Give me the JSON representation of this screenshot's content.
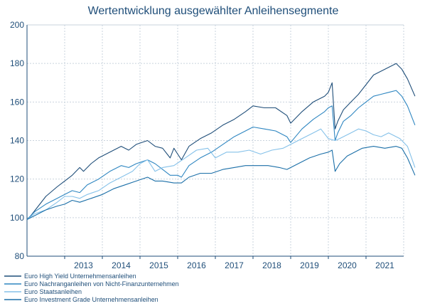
{
  "chart_data": {
    "type": "line",
    "title": "Wertentwicklung  ausgewählter  Anleihensegmente",
    "xlabel": "",
    "ylabel": "",
    "xlim": [
      2012.0,
      2022.0
    ],
    "ylim": [
      80,
      200
    ],
    "y_ticks": [
      80,
      100,
      120,
      140,
      160,
      180,
      200
    ],
    "x_tick_labels": [
      "2013",
      "2014",
      "2015",
      "2016",
      "2017",
      "2018",
      "2019",
      "2020",
      "2021"
    ],
    "grid": true,
    "legend_placement": "bottom-left",
    "series": [
      {
        "name": "Euro High Yield Unternehmensanleihen",
        "color": "#1f4e79",
        "points": [
          [
            2012.0,
            99
          ],
          [
            2012.1,
            101
          ],
          [
            2012.3,
            106
          ],
          [
            2012.5,
            111
          ],
          [
            2012.8,
            116
          ],
          [
            2013.0,
            119
          ],
          [
            2013.2,
            122
          ],
          [
            2013.4,
            126
          ],
          [
            2013.5,
            124
          ],
          [
            2013.7,
            128
          ],
          [
            2013.9,
            131
          ],
          [
            2014.2,
            134
          ],
          [
            2014.5,
            137
          ],
          [
            2014.7,
            135
          ],
          [
            2014.9,
            138
          ],
          [
            2015.2,
            140
          ],
          [
            2015.4,
            137
          ],
          [
            2015.6,
            136
          ],
          [
            2015.8,
            131
          ],
          [
            2015.9,
            136
          ],
          [
            2016.0,
            133
          ],
          [
            2016.1,
            130
          ],
          [
            2016.3,
            137
          ],
          [
            2016.6,
            141
          ],
          [
            2016.9,
            144
          ],
          [
            2017.2,
            148
          ],
          [
            2017.5,
            151
          ],
          [
            2017.8,
            155
          ],
          [
            2018.0,
            158
          ],
          [
            2018.3,
            157
          ],
          [
            2018.6,
            157
          ],
          [
            2018.9,
            153
          ],
          [
            2019.0,
            149
          ],
          [
            2019.3,
            155
          ],
          [
            2019.6,
            160
          ],
          [
            2019.9,
            163
          ],
          [
            2020.0,
            165
          ],
          [
            2020.1,
            170
          ],
          [
            2020.18,
            146
          ],
          [
            2020.25,
            150
          ],
          [
            2020.4,
            156
          ],
          [
            2020.6,
            160
          ],
          [
            2020.8,
            164
          ],
          [
            2021.0,
            169
          ],
          [
            2021.2,
            174
          ],
          [
            2021.4,
            176
          ],
          [
            2021.6,
            178
          ],
          [
            2021.8,
            180
          ],
          [
            2021.95,
            177
          ],
          [
            2022.1,
            172
          ],
          [
            2022.3,
            163
          ]
        ]
      },
      {
        "name": "Euro Nachranganleihen von Nicht-Finanzunternehmen",
        "color": "#2e86c1",
        "points": [
          [
            2012.0,
            99
          ],
          [
            2012.2,
            103
          ],
          [
            2012.5,
            107
          ],
          [
            2012.8,
            110
          ],
          [
            2013.0,
            112
          ],
          [
            2013.2,
            114
          ],
          [
            2013.4,
            113
          ],
          [
            2013.6,
            117
          ],
          [
            2013.9,
            120
          ],
          [
            2014.2,
            124
          ],
          [
            2014.5,
            127
          ],
          [
            2014.7,
            126
          ],
          [
            2014.9,
            128
          ],
          [
            2015.2,
            130
          ],
          [
            2015.4,
            128
          ],
          [
            2015.6,
            125
          ],
          [
            2015.8,
            122
          ],
          [
            2016.0,
            122
          ],
          [
            2016.1,
            121
          ],
          [
            2016.3,
            127
          ],
          [
            2016.6,
            131
          ],
          [
            2016.9,
            134
          ],
          [
            2017.2,
            138
          ],
          [
            2017.5,
            142
          ],
          [
            2017.8,
            145
          ],
          [
            2018.0,
            147
          ],
          [
            2018.3,
            146
          ],
          [
            2018.6,
            145
          ],
          [
            2018.9,
            142
          ],
          [
            2019.0,
            139
          ],
          [
            2019.3,
            146
          ],
          [
            2019.6,
            151
          ],
          [
            2019.9,
            155
          ],
          [
            2020.0,
            157
          ],
          [
            2020.1,
            158
          ],
          [
            2020.18,
            140
          ],
          [
            2020.25,
            144
          ],
          [
            2020.4,
            150
          ],
          [
            2020.6,
            153
          ],
          [
            2020.8,
            157
          ],
          [
            2021.0,
            160
          ],
          [
            2021.2,
            163
          ],
          [
            2021.4,
            164
          ],
          [
            2021.6,
            165
          ],
          [
            2021.8,
            166
          ],
          [
            2021.95,
            163
          ],
          [
            2022.1,
            158
          ],
          [
            2022.3,
            148
          ]
        ]
      },
      {
        "name": "Euro Staatsanleihen",
        "color": "#85c1e9",
        "points": [
          [
            2012.0,
            99
          ],
          [
            2012.2,
            102
          ],
          [
            2012.5,
            104
          ],
          [
            2012.8,
            108
          ],
          [
            2013.0,
            111
          ],
          [
            2013.2,
            111
          ],
          [
            2013.4,
            110
          ],
          [
            2013.6,
            112
          ],
          [
            2013.9,
            114
          ],
          [
            2014.2,
            118
          ],
          [
            2014.5,
            121
          ],
          [
            2014.8,
            124
          ],
          [
            2015.0,
            128
          ],
          [
            2015.2,
            130
          ],
          [
            2015.4,
            124
          ],
          [
            2015.6,
            126
          ],
          [
            2015.9,
            127
          ],
          [
            2016.2,
            131
          ],
          [
            2016.5,
            135
          ],
          [
            2016.8,
            136
          ],
          [
            2017.0,
            131
          ],
          [
            2017.3,
            134
          ],
          [
            2017.6,
            134
          ],
          [
            2017.9,
            135
          ],
          [
            2018.2,
            133
          ],
          [
            2018.5,
            135
          ],
          [
            2018.8,
            136
          ],
          [
            2019.0,
            138
          ],
          [
            2019.3,
            141
          ],
          [
            2019.6,
            144
          ],
          [
            2019.8,
            146
          ],
          [
            2020.0,
            141
          ],
          [
            2020.18,
            140
          ],
          [
            2020.3,
            141
          ],
          [
            2020.6,
            144
          ],
          [
            2020.8,
            146
          ],
          [
            2021.0,
            145
          ],
          [
            2021.2,
            143
          ],
          [
            2021.4,
            142
          ],
          [
            2021.6,
            144
          ],
          [
            2021.9,
            141
          ],
          [
            2022.1,
            137
          ],
          [
            2022.3,
            126
          ]
        ]
      },
      {
        "name": "Euro Investment Grade Unternehmensanleihen",
        "color": "#1b6fa8",
        "points": [
          [
            2012.0,
            99
          ],
          [
            2012.2,
            101
          ],
          [
            2012.5,
            104
          ],
          [
            2012.8,
            106
          ],
          [
            2013.0,
            107
          ],
          [
            2013.2,
            109
          ],
          [
            2013.4,
            108
          ],
          [
            2013.7,
            110
          ],
          [
            2014.0,
            112
          ],
          [
            2014.3,
            115
          ],
          [
            2014.6,
            117
          ],
          [
            2014.9,
            119
          ],
          [
            2015.2,
            121
          ],
          [
            2015.4,
            119
          ],
          [
            2015.6,
            119
          ],
          [
            2015.9,
            118
          ],
          [
            2016.1,
            118
          ],
          [
            2016.3,
            121
          ],
          [
            2016.6,
            123
          ],
          [
            2016.9,
            123
          ],
          [
            2017.2,
            125
          ],
          [
            2017.5,
            126
          ],
          [
            2017.8,
            127
          ],
          [
            2018.1,
            127
          ],
          [
            2018.4,
            127
          ],
          [
            2018.7,
            126
          ],
          [
            2018.9,
            125
          ],
          [
            2019.2,
            128
          ],
          [
            2019.5,
            131
          ],
          [
            2019.8,
            133
          ],
          [
            2020.0,
            134
          ],
          [
            2020.1,
            135
          ],
          [
            2020.18,
            124
          ],
          [
            2020.3,
            128
          ],
          [
            2020.5,
            132
          ],
          [
            2020.7,
            134
          ],
          [
            2020.9,
            136
          ],
          [
            2021.2,
            137
          ],
          [
            2021.5,
            136
          ],
          [
            2021.8,
            137
          ],
          [
            2021.95,
            136
          ],
          [
            2022.1,
            131
          ],
          [
            2022.3,
            122
          ]
        ]
      }
    ]
  }
}
